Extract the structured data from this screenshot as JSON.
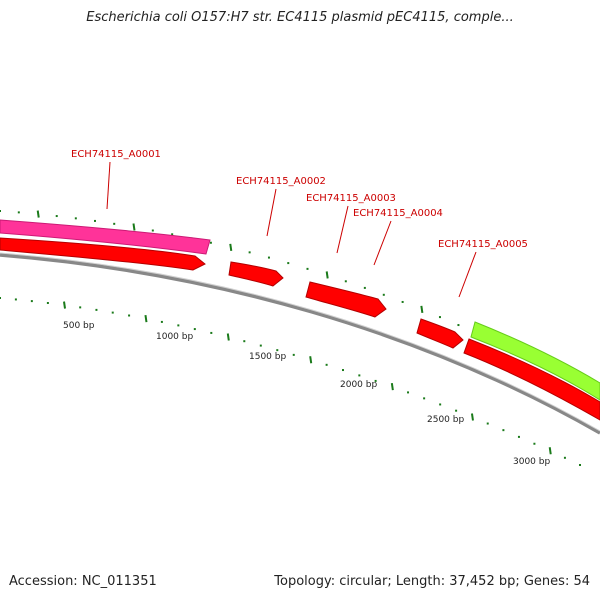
{
  "title": "Escherichia coli O157:H7 str. EC4115 plasmid pEC4115, comple...",
  "footer": {
    "accession": "Accession: NC_011351",
    "stats": "Topology: circular; Length: 37,452 bp; Genes: 54"
  },
  "genes": [
    {
      "label": "ECH74115_A0001"
    },
    {
      "label": "ECH74115_A0002"
    },
    {
      "label": "ECH74115_A0003"
    },
    {
      "label": "ECH74115_A0004"
    },
    {
      "label": "ECH74115_A0005"
    }
  ],
  "ticks": [
    {
      "label": "500 bp"
    },
    {
      "label": "1000 bp"
    },
    {
      "label": "1500 bp"
    },
    {
      "label": "2000 bp"
    },
    {
      "label": "2500 bp"
    },
    {
      "label": "3000 bp"
    }
  ],
  "colors": {
    "cds": "#ff0000",
    "cds_dark": "#b30000",
    "feature_pink": "#ff3399",
    "feature_green": "#99ff33",
    "backbone": "#808080",
    "tick": "#1a7a1a",
    "label": "#cc0000"
  }
}
